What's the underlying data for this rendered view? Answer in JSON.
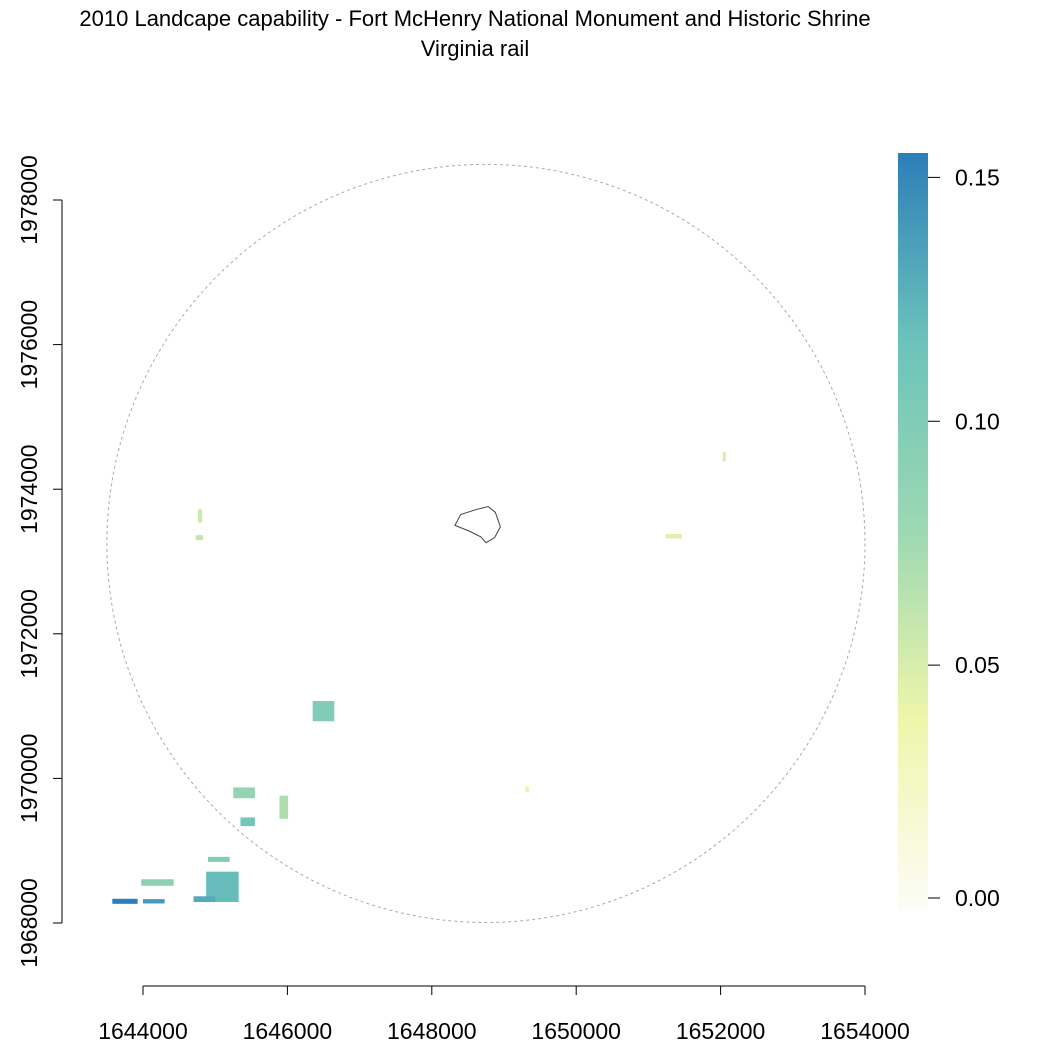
{
  "chart_data": {
    "type": "heatmap",
    "title": "2010 Landcape capability - Fort McHenry National Monument and Historic Shrine",
    "subtitle": "Virginia rail",
    "xlabel": "",
    "ylabel": "",
    "xlim": [
      1643400,
      1654000
    ],
    "ylim": [
      1967100,
      1978900
    ],
    "x_ticks": [
      "1644000",
      "1646000",
      "1648000",
      "1650000",
      "1652000",
      "1654000"
    ],
    "x_tick_values": [
      1644000,
      1646000,
      1648000,
      1650000,
      1652000,
      1654000
    ],
    "y_ticks": [
      "1968000",
      "1970000",
      "1972000",
      "1974000",
      "1976000",
      "1978000"
    ],
    "y_tick_values": [
      1968000,
      1970000,
      1972000,
      1974000,
      1976000,
      1978000
    ],
    "grid": false,
    "legend": {
      "position": "right",
      "type": "colorbar",
      "min": 0.0,
      "max": 0.155,
      "ticks": [
        "0.00",
        "0.05",
        "0.10",
        "0.15"
      ],
      "tick_values": [
        0.0,
        0.05,
        0.1,
        0.15
      ],
      "colors": [
        "#fcfcf6",
        "#eef6aa",
        "#9dd8b2",
        "#6cc3bb",
        "#2c7fb8"
      ]
    },
    "buffer_circle": {
      "center": [
        1648750,
        1973250
      ],
      "radius": 5250,
      "line": "dashed",
      "color": "#aaaaaa"
    },
    "park_boundary": [
      [
        1648320,
        1973500
      ],
      [
        1648400,
        1973650
      ],
      [
        1648620,
        1973720
      ],
      [
        1648780,
        1973760
      ],
      [
        1648880,
        1973680
      ],
      [
        1648950,
        1973480
      ],
      [
        1648870,
        1973330
      ],
      [
        1648750,
        1973260
      ],
      [
        1648680,
        1973340
      ],
      [
        1648520,
        1973420
      ],
      [
        1648320,
        1973500
      ]
    ],
    "patches": [
      {
        "x": 1643750,
        "y": 1968300,
        "w": 350,
        "h": 70,
        "value": 0.155
      },
      {
        "x": 1644150,
        "y": 1968300,
        "w": 300,
        "h": 60,
        "value": 0.14
      },
      {
        "x": 1644200,
        "y": 1968560,
        "w": 450,
        "h": 90,
        "value": 0.09
      },
      {
        "x": 1645100,
        "y": 1968500,
        "w": 450,
        "h": 420,
        "value": 0.12
      },
      {
        "x": 1644850,
        "y": 1968330,
        "w": 300,
        "h": 80,
        "value": 0.13
      },
      {
        "x": 1645050,
        "y": 1968880,
        "w": 300,
        "h": 70,
        "value": 0.1
      },
      {
        "x": 1645400,
        "y": 1969800,
        "w": 300,
        "h": 150,
        "value": 0.085
      },
      {
        "x": 1645450,
        "y": 1969400,
        "w": 200,
        "h": 120,
        "value": 0.11
      },
      {
        "x": 1645950,
        "y": 1969600,
        "w": 120,
        "h": 320,
        "value": 0.07
      },
      {
        "x": 1646500,
        "y": 1970930,
        "w": 300,
        "h": 280,
        "value": 0.1
      },
      {
        "x": 1644790,
        "y": 1973630,
        "w": 60,
        "h": 180,
        "value": 0.055
      },
      {
        "x": 1644780,
        "y": 1973330,
        "w": 100,
        "h": 70,
        "value": 0.06
      },
      {
        "x": 1649320,
        "y": 1969850,
        "w": 50,
        "h": 80,
        "value": 0.04
      },
      {
        "x": 1652050,
        "y": 1974450,
        "w": 40,
        "h": 130,
        "value": 0.05
      },
      {
        "x": 1651350,
        "y": 1973350,
        "w": 230,
        "h": 60,
        "value": 0.045
      }
    ]
  }
}
